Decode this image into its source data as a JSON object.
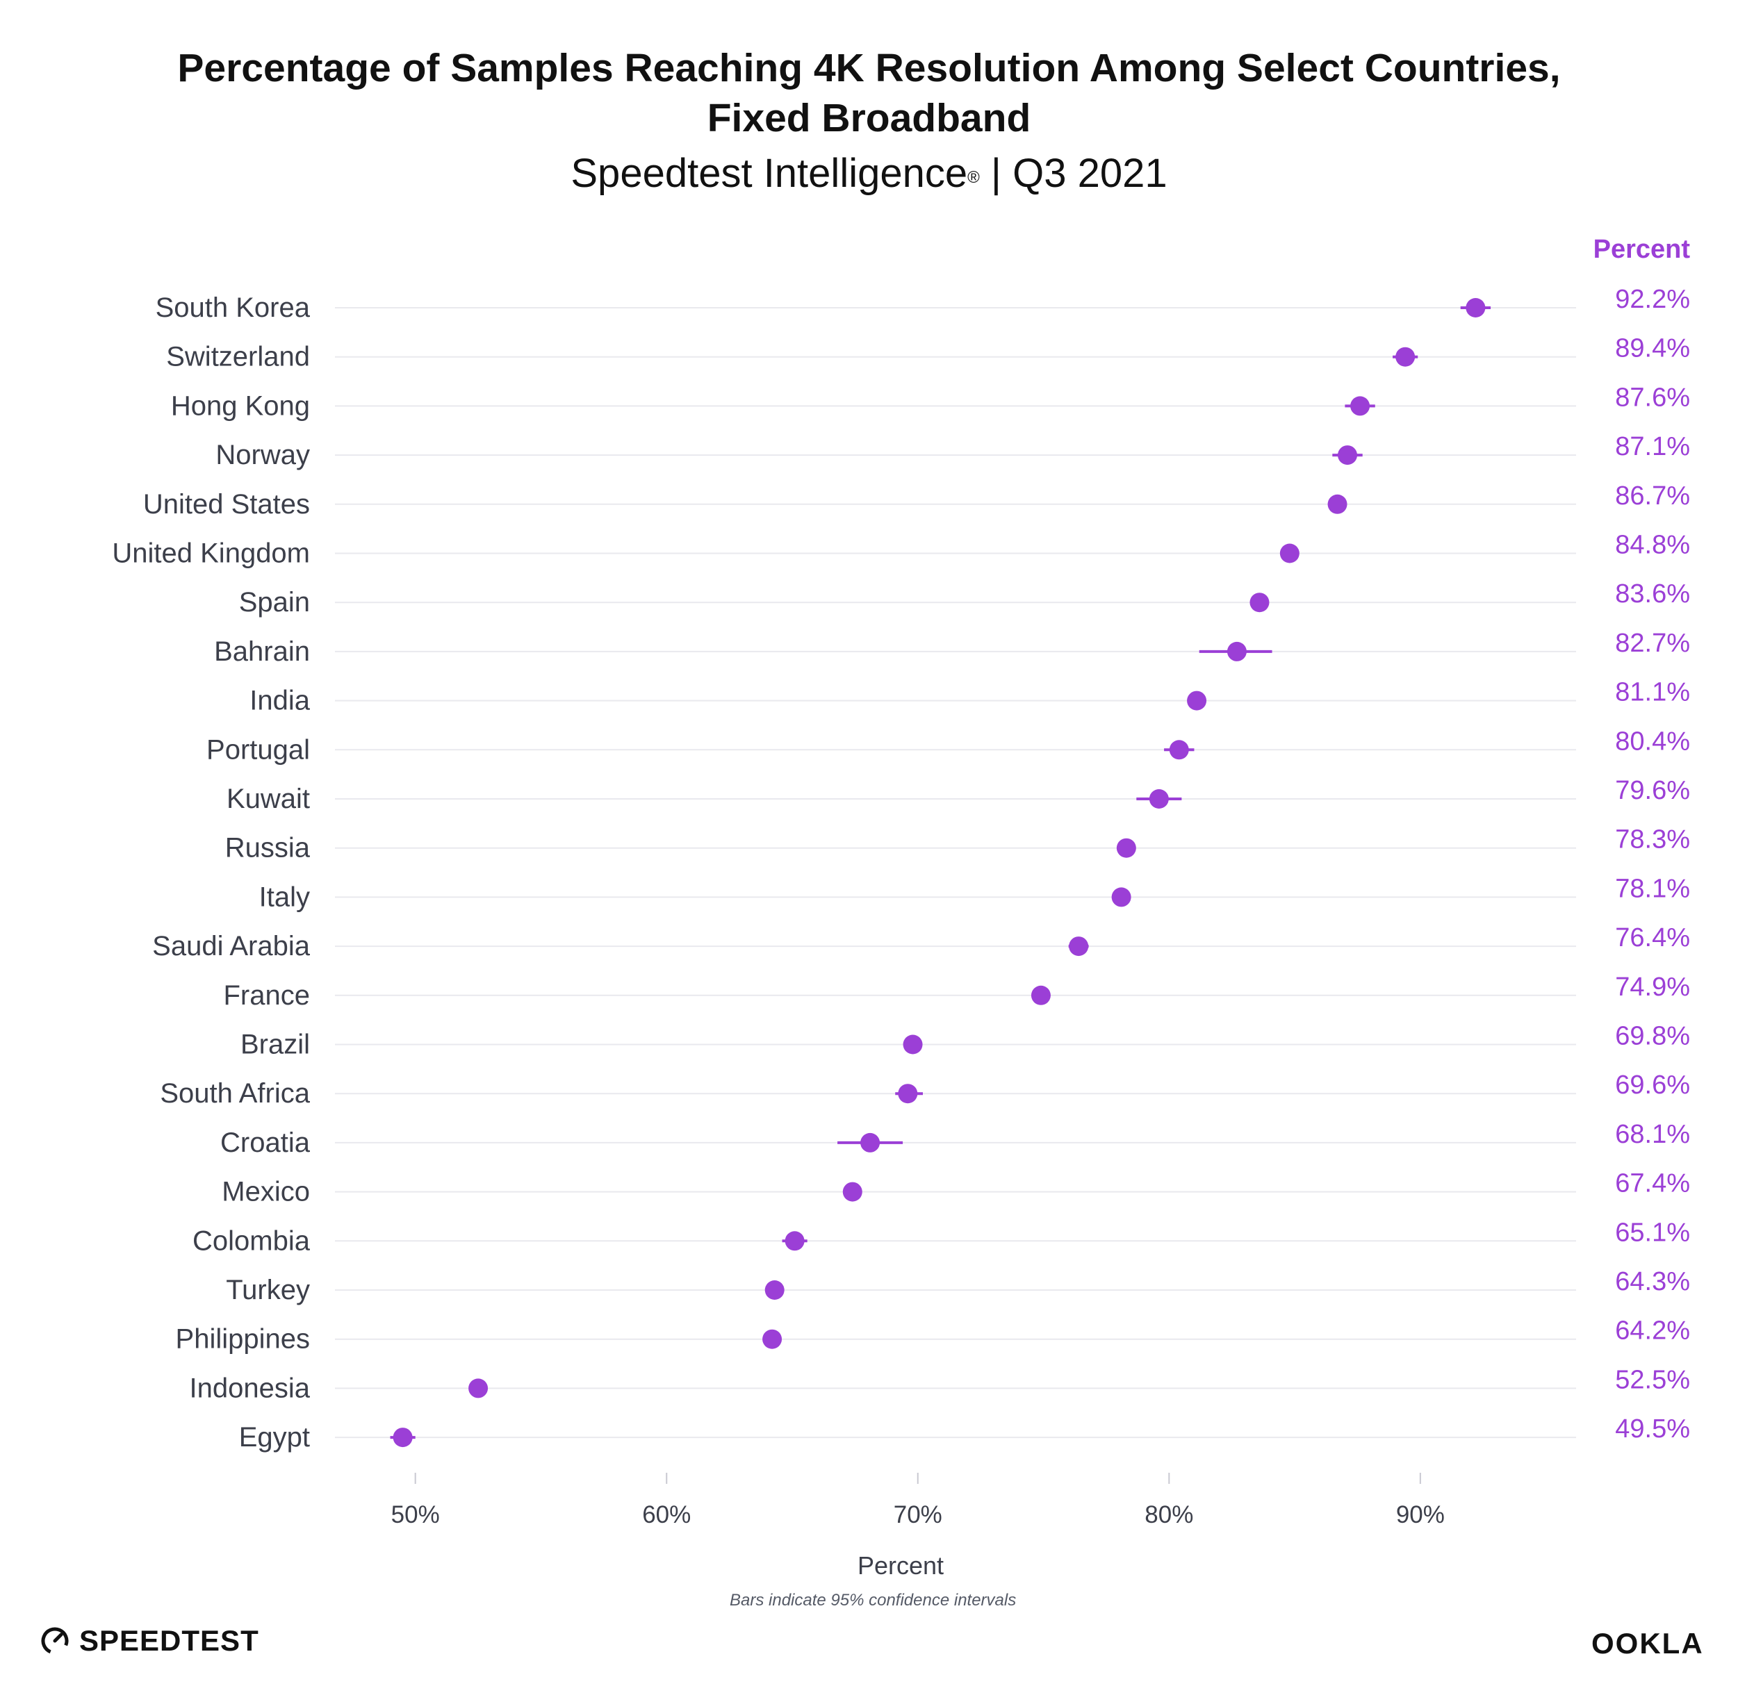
{
  "header": {
    "title_line1": "Percentage of Samples Reaching 4K Resolution Among Select Countries,",
    "title_line2": "Fixed Broadband",
    "subtitle_main": "Speedtest Intelligence",
    "subtitle_mark": "®",
    "subtitle_period": " | Q3 2021"
  },
  "footnote": "Bars indicate 95% confidence intervals",
  "logos": {
    "left": "SPEEDTEST",
    "right": "OOKLA"
  },
  "colors": {
    "accent": "#9b3fd6",
    "label": "#3c3f4a",
    "grid": "#e9e9ee",
    "tick": "#c9c9d2"
  },
  "icons": {
    "speedtest_logo": "gauge-icon"
  },
  "chart_data": {
    "type": "dot-plot",
    "xlabel": "Percent",
    "value_column_header": "Percent",
    "xlim": [
      46.8,
      96.2
    ],
    "xticks": [
      50,
      60,
      70,
      80,
      90
    ],
    "xtick_labels": [
      "50%",
      "60%",
      "70%",
      "80%",
      "90%"
    ],
    "grid": "horizontal",
    "rows": [
      {
        "country": "South Korea",
        "value": 92.2,
        "ci": [
          91.6,
          92.8
        ],
        "label": "92.2%"
      },
      {
        "country": "Switzerland",
        "value": 89.4,
        "ci": [
          88.9,
          89.9
        ],
        "label": "89.4%"
      },
      {
        "country": "Hong Kong",
        "value": 87.6,
        "ci": [
          87.0,
          88.2
        ],
        "label": "87.6%"
      },
      {
        "country": "Norway",
        "value": 87.1,
        "ci": [
          86.5,
          87.7
        ],
        "label": "87.1%"
      },
      {
        "country": "United States",
        "value": 86.7,
        "ci": [
          86.5,
          86.9
        ],
        "label": "86.7%"
      },
      {
        "country": "United Kingdom",
        "value": 84.8,
        "ci": [
          84.6,
          85.0
        ],
        "label": "84.8%"
      },
      {
        "country": "Spain",
        "value": 83.6,
        "ci": [
          83.3,
          83.9
        ],
        "label": "83.6%"
      },
      {
        "country": "Bahrain",
        "value": 82.7,
        "ci": [
          81.2,
          84.1
        ],
        "label": "82.7%"
      },
      {
        "country": "India",
        "value": 81.1,
        "ci": [
          80.9,
          81.3
        ],
        "label": "81.1%"
      },
      {
        "country": "Portugal",
        "value": 80.4,
        "ci": [
          79.8,
          81.0
        ],
        "label": "80.4%"
      },
      {
        "country": "Kuwait",
        "value": 79.6,
        "ci": [
          78.7,
          80.5
        ],
        "label": "79.6%"
      },
      {
        "country": "Russia",
        "value": 78.3,
        "ci": [
          78.1,
          78.5
        ],
        "label": "78.3%"
      },
      {
        "country": "Italy",
        "value": 78.1,
        "ci": [
          77.9,
          78.3
        ],
        "label": "78.1%"
      },
      {
        "country": "Saudi Arabia",
        "value": 76.4,
        "ci": [
          76.0,
          76.8
        ],
        "label": "76.4%"
      },
      {
        "country": "France",
        "value": 74.9,
        "ci": [
          74.7,
          75.1
        ],
        "label": "74.9%"
      },
      {
        "country": "Brazil",
        "value": 69.8,
        "ci": [
          69.6,
          70.0
        ],
        "label": "69.8%"
      },
      {
        "country": "South Africa",
        "value": 69.6,
        "ci": [
          69.1,
          70.2
        ],
        "label": "69.6%"
      },
      {
        "country": "Croatia",
        "value": 68.1,
        "ci": [
          66.8,
          69.4
        ],
        "label": "68.1%"
      },
      {
        "country": "Mexico",
        "value": 67.4,
        "ci": [
          67.2,
          67.6
        ],
        "label": "67.4%"
      },
      {
        "country": "Colombia",
        "value": 65.1,
        "ci": [
          64.6,
          65.6
        ],
        "label": "65.1%"
      },
      {
        "country": "Turkey",
        "value": 64.3,
        "ci": [
          64.1,
          64.5
        ],
        "label": "64.3%"
      },
      {
        "country": "Philippines",
        "value": 64.2,
        "ci": [
          64.0,
          64.4
        ],
        "label": "64.2%"
      },
      {
        "country": "Indonesia",
        "value": 52.5,
        "ci": [
          52.3,
          52.7
        ],
        "label": "52.5%"
      },
      {
        "country": "Egypt",
        "value": 49.5,
        "ci": [
          49.0,
          50.0
        ],
        "label": "49.5%"
      }
    ]
  }
}
